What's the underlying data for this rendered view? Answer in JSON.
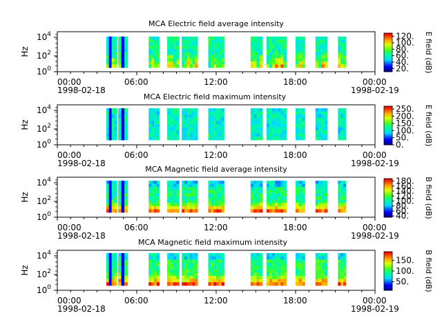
{
  "chart_data": [
    {
      "type": "heatmap",
      "title": "MCA  Electric field average intensity",
      "ylabel": "Hz",
      "y_scale": "log",
      "yticks": [
        {
          "base": "10",
          "exp": "0"
        },
        {
          "base": "10",
          "exp": "2"
        },
        {
          "base": "10",
          "exp": "4"
        }
      ],
      "xticks": [
        "00:00",
        "06:00",
        "12:00",
        "18:00",
        "00:00"
      ],
      "xdates": [
        "1998-02-18",
        "1998-02-19"
      ],
      "colorbar": {
        "label": "E field (dB)",
        "range": [
          10,
          130
        ],
        "ticks": [
          "20.",
          "40.",
          "60.",
          "80.",
          "100.",
          "120."
        ],
        "tick_values": [
          20,
          40,
          60,
          80,
          100,
          120
        ]
      },
      "palette": "low",
      "data_blocks_hours": [
        [
          3.7,
          4.5
        ],
        [
          4.6,
          5.3
        ],
        [
          6.9,
          7.7
        ],
        [
          8.3,
          9.2
        ],
        [
          9.4,
          10.6
        ],
        [
          11.4,
          12.6
        ],
        [
          14.6,
          15.5
        ],
        [
          15.8,
          17.3
        ],
        [
          18.0,
          18.7
        ],
        [
          19.5,
          20.4
        ],
        [
          21.2,
          21.8
        ]
      ],
      "dominant_level": 0.42,
      "hot_level": 0.78
    },
    {
      "type": "heatmap",
      "title": "MCA  Electric field maximum intensity",
      "ylabel": "Hz",
      "y_scale": "log",
      "yticks": [
        {
          "base": "10",
          "exp": "0"
        },
        {
          "base": "10",
          "exp": "2"
        },
        {
          "base": "10",
          "exp": "4"
        }
      ],
      "xticks": [
        "00:00",
        "06:00",
        "12:00",
        "18:00",
        "00:00"
      ],
      "xdates": [
        "1998-02-18",
        "1998-02-19"
      ],
      "colorbar": {
        "label": "E field (dB)",
        "range": [
          0,
          270
        ],
        "ticks": [
          "0.",
          "50.",
          "100.",
          "150.",
          "200.",
          "250."
        ],
        "tick_values": [
          0,
          50,
          100,
          150,
          200,
          250
        ]
      },
      "palette": "cool",
      "data_blocks_hours": [
        [
          3.7,
          4.5
        ],
        [
          4.6,
          5.3
        ],
        [
          6.9,
          7.7
        ],
        [
          8.3,
          9.2
        ],
        [
          9.4,
          10.6
        ],
        [
          11.4,
          12.6
        ],
        [
          14.6,
          15.5
        ],
        [
          15.8,
          17.3
        ],
        [
          18.0,
          18.7
        ],
        [
          19.5,
          20.4
        ],
        [
          21.2,
          21.8
        ]
      ],
      "dominant_level": 0.38,
      "hot_level": 0.45
    },
    {
      "type": "heatmap",
      "title": "MCA  Magnetic field average intensity",
      "ylabel": "Hz",
      "y_scale": "log",
      "yticks": [
        {
          "base": "10",
          "exp": "0"
        },
        {
          "base": "10",
          "exp": "2"
        },
        {
          "base": "10",
          "exp": "4"
        }
      ],
      "xticks": [
        "00:00",
        "06:00",
        "12:00",
        "18:00",
        "00:00"
      ],
      "xdates": [
        "1998-02-18",
        "1998-02-19"
      ],
      "colorbar": {
        "label": "B field (dB)",
        "range": [
          35,
          190
        ],
        "ticks": [
          "40.",
          "60.",
          "80.",
          "100.",
          "120.",
          "140.",
          "160.",
          "180."
        ],
        "tick_values": [
          40,
          60,
          80,
          100,
          120,
          140,
          160,
          180
        ]
      },
      "palette": "mag",
      "data_blocks_hours": [
        [
          3.7,
          4.5
        ],
        [
          4.6,
          5.3
        ],
        [
          6.9,
          7.7
        ],
        [
          8.3,
          9.2
        ],
        [
          9.4,
          10.6
        ],
        [
          11.4,
          12.6
        ],
        [
          14.6,
          15.5
        ],
        [
          15.8,
          17.3
        ],
        [
          18.0,
          18.7
        ],
        [
          19.5,
          20.4
        ],
        [
          21.2,
          21.8
        ]
      ],
      "dominant_level": 0.45,
      "hot_level": 0.82
    },
    {
      "type": "heatmap",
      "title": "MCA  Magnetic field maximum intensity",
      "ylabel": "Hz",
      "y_scale": "log",
      "yticks": [
        {
          "base": "10",
          "exp": "0"
        },
        {
          "base": "10",
          "exp": "2"
        },
        {
          "base": "10",
          "exp": "4"
        }
      ],
      "xticks": [
        "00:00",
        "06:00",
        "12:00",
        "18:00",
        "00:00"
      ],
      "xdates": [
        "1998-02-18",
        "1998-02-19"
      ],
      "colorbar": {
        "label": "B field (dB)",
        "range": [
          10,
          190
        ],
        "ticks": [
          "50.",
          "100.",
          "150."
        ],
        "tick_values": [
          50,
          100,
          150
        ]
      },
      "palette": "mag",
      "data_blocks_hours": [
        [
          3.7,
          4.5
        ],
        [
          4.6,
          5.3
        ],
        [
          6.9,
          7.7
        ],
        [
          8.3,
          9.2
        ],
        [
          9.4,
          10.6
        ],
        [
          11.4,
          12.6
        ],
        [
          14.6,
          15.5
        ],
        [
          15.8,
          17.3
        ],
        [
          18.0,
          18.7
        ],
        [
          19.5,
          20.4
        ],
        [
          21.2,
          21.8
        ]
      ],
      "dominant_level": 0.48,
      "hot_level": 0.85
    }
  ]
}
